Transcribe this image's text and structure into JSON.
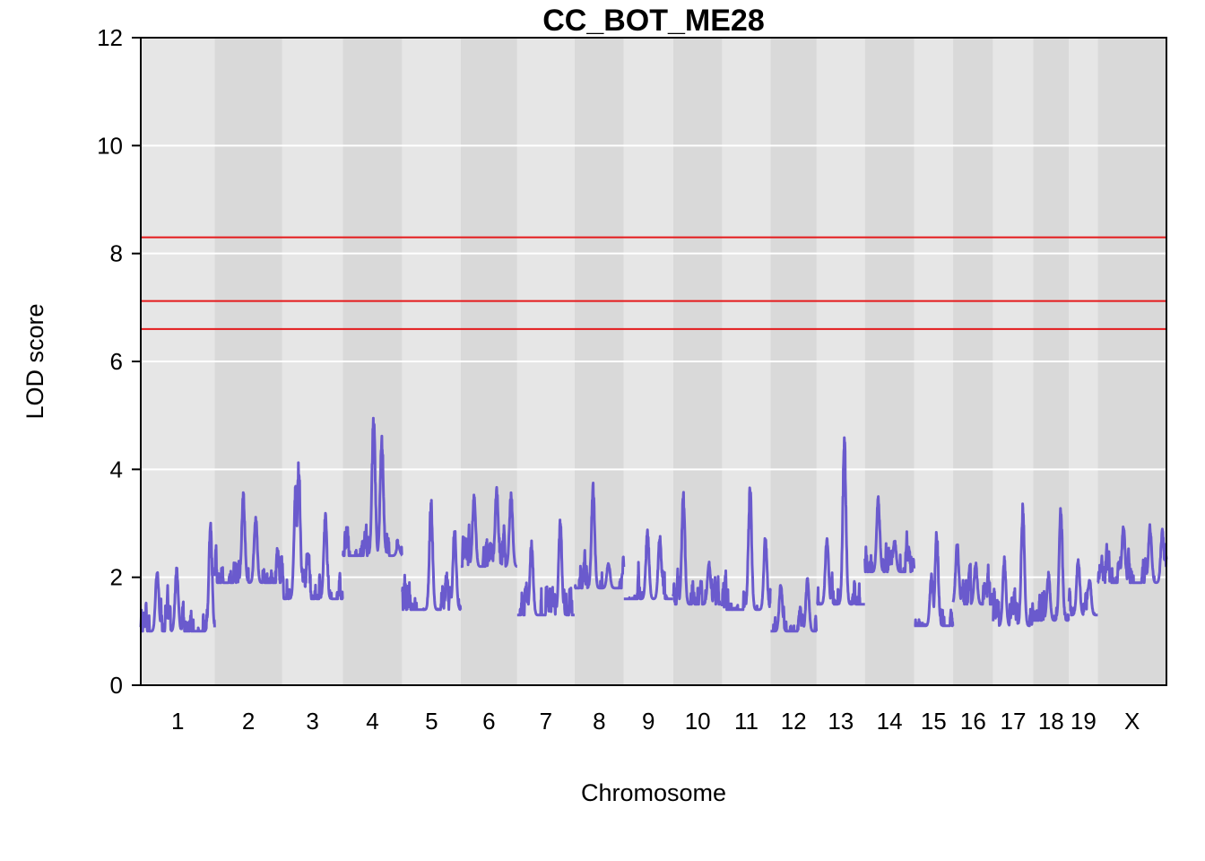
{
  "chart_data": {
    "type": "line",
    "title": "CC_BOT_ME28",
    "xlabel": "Chromosome",
    "ylabel": "LOD score",
    "ylim": [
      0,
      12
    ],
    "yticks": [
      "0",
      "2",
      "4",
      "6",
      "8",
      "10",
      "12"
    ],
    "grid": true,
    "chromosomes": [
      {
        "label": "1",
        "start": 0.0,
        "end": 7.2,
        "base": 1.0,
        "amp": 0.55,
        "peaks": [
          [
            1.6,
            2.2
          ],
          [
            3.5,
            2.2
          ],
          [
            6.8,
            3.1
          ]
        ]
      },
      {
        "label": "2",
        "start": 7.2,
        "end": 13.8,
        "base": 1.9,
        "amp": 0.55,
        "peaks": [
          [
            2.8,
            3.6
          ],
          [
            4.0,
            3.2
          ]
        ]
      },
      {
        "label": "3",
        "start": 13.8,
        "end": 19.7,
        "base": 1.6,
        "amp": 0.55,
        "peaks": [
          [
            1.3,
            3.8
          ],
          [
            1.6,
            4.2
          ],
          [
            4.2,
            3.2
          ]
        ]
      },
      {
        "label": "4",
        "start": 19.7,
        "end": 25.5,
        "base": 2.4,
        "amp": 0.5,
        "peaks": [
          [
            3.0,
            5.1
          ],
          [
            3.8,
            4.7
          ],
          [
            5.4,
            2.6
          ]
        ]
      },
      {
        "label": "5",
        "start": 25.5,
        "end": 31.2,
        "base": 1.4,
        "amp": 0.55,
        "peaks": [
          [
            2.8,
            3.5
          ],
          [
            5.1,
            3.0
          ]
        ]
      },
      {
        "label": "6",
        "start": 31.2,
        "end": 36.7,
        "base": 2.2,
        "amp": 0.6,
        "peaks": [
          [
            1.3,
            3.6
          ],
          [
            3.5,
            3.7
          ],
          [
            4.9,
            3.6
          ]
        ]
      },
      {
        "label": "7",
        "start": 36.7,
        "end": 42.3,
        "base": 1.3,
        "amp": 0.55,
        "peaks": [
          [
            1.4,
            2.7
          ],
          [
            4.2,
            3.1
          ]
        ]
      },
      {
        "label": "8",
        "start": 42.3,
        "end": 47.1,
        "base": 1.8,
        "amp": 0.5,
        "peaks": [
          [
            1.8,
            3.8
          ],
          [
            3.3,
            2.3
          ]
        ]
      },
      {
        "label": "9",
        "start": 47.1,
        "end": 51.9,
        "base": 1.6,
        "amp": 0.55,
        "peaks": [
          [
            2.3,
            2.9
          ],
          [
            3.5,
            2.8
          ]
        ]
      },
      {
        "label": "10",
        "start": 51.9,
        "end": 56.7,
        "base": 1.5,
        "amp": 0.55,
        "peaks": [
          [
            1.0,
            3.6
          ],
          [
            3.5,
            2.3
          ]
        ]
      },
      {
        "label": "11",
        "start": 56.7,
        "end": 61.4,
        "base": 1.4,
        "amp": 0.55,
        "peaks": [
          [
            2.7,
            3.8
          ],
          [
            4.2,
            2.8
          ]
        ]
      },
      {
        "label": "12",
        "start": 61.4,
        "end": 65.9,
        "base": 1.0,
        "amp": 0.4,
        "peaks": [
          [
            1.0,
            1.9
          ],
          [
            3.6,
            2.0
          ]
        ]
      },
      {
        "label": "13",
        "start": 65.9,
        "end": 70.6,
        "base": 1.5,
        "amp": 0.5,
        "peaks": [
          [
            2.7,
            4.7
          ],
          [
            1.0,
            2.8
          ]
        ]
      },
      {
        "label": "14",
        "start": 70.6,
        "end": 75.4,
        "base": 2.1,
        "amp": 0.55,
        "peaks": [
          [
            1.3,
            3.5
          ],
          [
            2.9,
            2.7
          ]
        ]
      },
      {
        "label": "15",
        "start": 75.4,
        "end": 79.2,
        "base": 1.1,
        "amp": 0.45,
        "peaks": [
          [
            2.2,
            2.9
          ],
          [
            1.7,
            2.1
          ]
        ]
      },
      {
        "label": "16",
        "start": 79.2,
        "end": 83.1,
        "base": 1.5,
        "amp": 0.5,
        "peaks": [
          [
            0.4,
            2.7
          ],
          [
            2.2,
            2.3
          ]
        ]
      },
      {
        "label": "17",
        "start": 83.1,
        "end": 87.0,
        "base": 1.1,
        "amp": 0.5,
        "peaks": [
          [
            2.9,
            3.4
          ],
          [
            1.1,
            2.4
          ]
        ]
      },
      {
        "label": "18",
        "start": 87.0,
        "end": 90.5,
        "base": 1.2,
        "amp": 0.5,
        "peaks": [
          [
            2.7,
            3.4
          ],
          [
            1.5,
            2.1
          ]
        ]
      },
      {
        "label": "19",
        "start": 90.5,
        "end": 93.3,
        "base": 1.3,
        "amp": 0.45,
        "peaks": [
          [
            0.9,
            2.4
          ],
          [
            2.0,
            2.0
          ]
        ]
      },
      {
        "label": "X",
        "start": 93.3,
        "end": 100.0,
        "base": 1.9,
        "amp": 0.5,
        "peaks": [
          [
            2.5,
            3.0
          ],
          [
            5.1,
            3.0
          ],
          [
            6.3,
            2.9
          ]
        ]
      }
    ],
    "threshold_lines": [
      {
        "value": 8.3,
        "color": "#e41a1c"
      },
      {
        "value": 7.12,
        "color": "#e41a1c"
      },
      {
        "value": 6.6,
        "color": "#e41a1c"
      }
    ],
    "colors": {
      "lod_curve": "#6a5acd",
      "band_light": "#e6e6e6",
      "band_dark": "#d9d9d9",
      "gridline": "#ffffff",
      "frame": "#000000"
    }
  }
}
